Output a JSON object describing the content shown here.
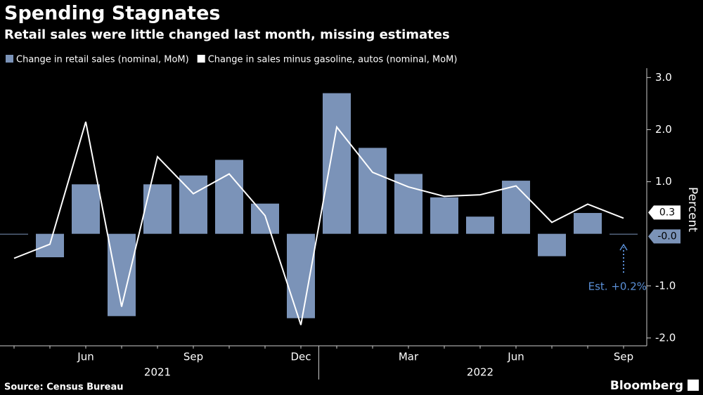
{
  "chart_data": {
    "type": "bar-line",
    "title": "Spending Stagnates",
    "subtitle": "Retail sales were little changed last month, missing estimates",
    "y_label": "Percent",
    "source": "Source: Census Bureau",
    "brand": "Bloomberg",
    "categories": [
      null,
      null,
      "Jun",
      null,
      null,
      "Sep",
      null,
      null,
      "Dec",
      null,
      null,
      "Mar",
      null,
      null,
      "Jun",
      null,
      null,
      "Sep"
    ],
    "x_groups": [
      "2021",
      "2022"
    ],
    "series": [
      {
        "name": "Change in retail sales (nominal, MoM)",
        "color": "#7b93b8",
        "kind": "bar",
        "values": [
          0.0,
          -0.45,
          0.95,
          -1.58,
          0.95,
          1.12,
          1.42,
          0.58,
          -1.62,
          2.7,
          1.65,
          1.15,
          0.7,
          0.33,
          1.02,
          -0.43,
          0.4,
          -0.01
        ],
        "value_labels": [
          null,
          null,
          null,
          null,
          null,
          null,
          null,
          null,
          null,
          null,
          null,
          null,
          null,
          null,
          null,
          null,
          null,
          "-0.0"
        ]
      },
      {
        "name": "Change in sales minus gasoline, autos (nominal, MoM)",
        "color": "#ffffff",
        "kind": "line",
        "values": [
          -0.47,
          -0.2,
          2.15,
          -1.4,
          1.48,
          0.77,
          1.15,
          0.35,
          -1.75,
          2.05,
          1.18,
          0.9,
          0.72,
          0.75,
          0.92,
          0.22,
          0.57,
          0.3
        ]
      }
    ],
    "annotations": [
      {
        "text": "Est. +0.2%",
        "color": "#5a8fd6"
      }
    ],
    "ylim": [
      -2.15,
      3.18
    ],
    "yticks": [
      {
        "value": 3,
        "label": "3.0"
      },
      {
        "value": 2,
        "label": "2.0"
      },
      {
        "value": 1,
        "label": "1.0"
      },
      {
        "value": -1,
        "label": "-1.0"
      },
      {
        "value": -2,
        "label": "-2.0"
      }
    ]
  }
}
